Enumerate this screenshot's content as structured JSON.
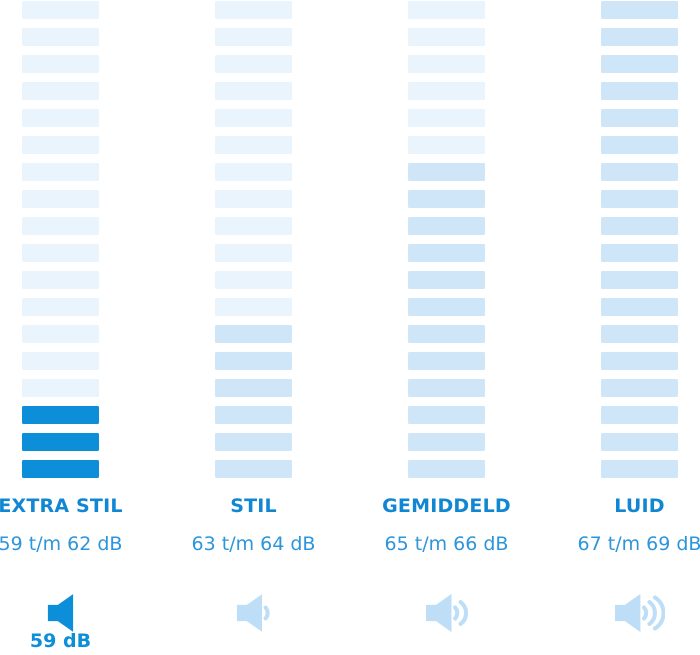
{
  "colors": {
    "accent": "#0c8ed9",
    "bar_light": "#e9f4fd",
    "bar_range": "#cfe6f8",
    "label_text": "#1187d3",
    "range_text": "#2d95da",
    "icon_muted": "#bddef6",
    "background": "#ffffff"
  },
  "columns": [
    {
      "label": "EXTRA STIL",
      "range": "59 t/m 62 dB",
      "bars": {
        "light": 15,
        "medium": 0,
        "active": 3
      },
      "icon": {
        "name": "speaker-icon",
        "waves": 0,
        "variant": "active"
      },
      "selected_label": "59 dB"
    },
    {
      "label": "STIL",
      "range": "63 t/m 64 dB",
      "bars": {
        "light": 12,
        "medium": 6,
        "active": 0
      },
      "icon": {
        "name": "speaker-1-wave-icon",
        "waves": 1,
        "variant": "muted"
      },
      "selected_label": ""
    },
    {
      "label": "GEMIDDELD",
      "range": "65 t/m 66 dB",
      "bars": {
        "light": 6,
        "medium": 12,
        "active": 0
      },
      "icon": {
        "name": "speaker-2-waves-icon",
        "waves": 2,
        "variant": "muted"
      },
      "selected_label": ""
    },
    {
      "label": "LUID",
      "range": "67 t/m 69 dB",
      "bars": {
        "light": 0,
        "medium": 18,
        "active": 0
      },
      "icon": {
        "name": "speaker-3-waves-icon",
        "waves": 3,
        "variant": "muted"
      },
      "selected_label": ""
    }
  ],
  "selected": {
    "category": "EXTRA STIL",
    "value_label": "59 dB"
  },
  "chart_data": {
    "type": "bar",
    "title": "",
    "unit": "dB",
    "categories": [
      "EXTRA STIL",
      "STIL",
      "GEMIDDELD",
      "LUID"
    ],
    "segments_per_column": 18,
    "series": [
      {
        "name": "EXTRA STIL",
        "range_db": [
          59,
          62
        ],
        "range_label": "59 t/m 62 dB",
        "highlighted_segments": 3,
        "highlight_style": "active-blue",
        "speaker_waves": 0
      },
      {
        "name": "STIL",
        "range_db": [
          63,
          64
        ],
        "range_label": "63 t/m 64 dB",
        "highlighted_segments": 6,
        "highlight_style": "medium-blue",
        "speaker_waves": 1
      },
      {
        "name": "GEMIDDELD",
        "range_db": [
          65,
          66
        ],
        "range_label": "65 t/m 66 dB",
        "highlighted_segments": 12,
        "highlight_style": "medium-blue",
        "speaker_waves": 2
      },
      {
        "name": "LUID",
        "range_db": [
          67,
          69
        ],
        "range_label": "67 t/m 69 dB",
        "highlighted_segments": 18,
        "highlight_style": "medium-blue",
        "speaker_waves": 3
      }
    ],
    "selected_value": "59 dB",
    "legend_position": "none",
    "grid": false
  }
}
